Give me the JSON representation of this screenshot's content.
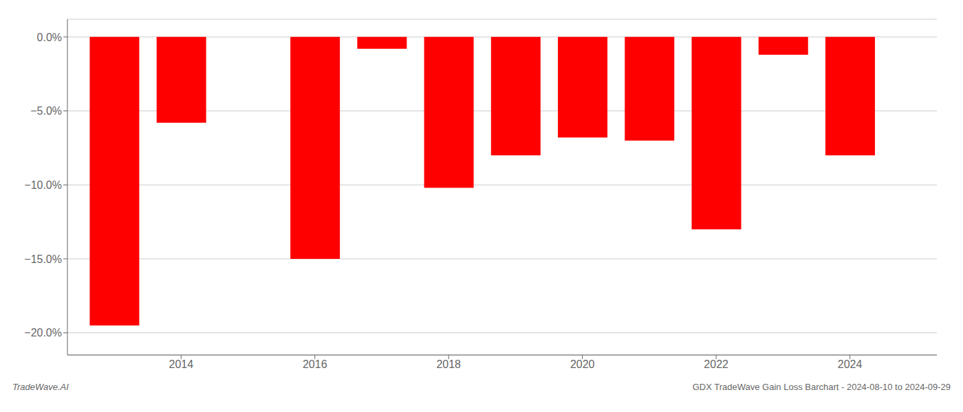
{
  "chart_data": {
    "type": "bar",
    "x": [
      2013,
      2014,
      2016,
      2017,
      2018,
      2019,
      2020,
      2021,
      2022,
      2023,
      2024
    ],
    "values": [
      -19.5,
      -5.8,
      -15.0,
      -0.8,
      -10.2,
      -8.0,
      -6.8,
      -7.0,
      -13.0,
      -1.2,
      -8.0
    ],
    "color": "#ff0000",
    "xlim": [
      2012.3,
      2025.3
    ],
    "xticks": [
      2014,
      2016,
      2018,
      2020,
      2022,
      2024
    ],
    "ylim": [
      -21.5,
      1.2
    ],
    "yticks": [
      {
        "value": 0.0,
        "label": "0.0%"
      },
      {
        "value": -5.0,
        "label": "−5.0%"
      },
      {
        "value": -10.0,
        "label": "−10.0%"
      },
      {
        "value": -15.0,
        "label": "−15.0%"
      },
      {
        "value": -20.0,
        "label": "−20.0%"
      }
    ],
    "grid": true,
    "annotations": [
      "TradeWave.AI",
      "GDX TradeWave Gain Loss Barchart - 2024-08-10 to 2024-09-29"
    ]
  }
}
